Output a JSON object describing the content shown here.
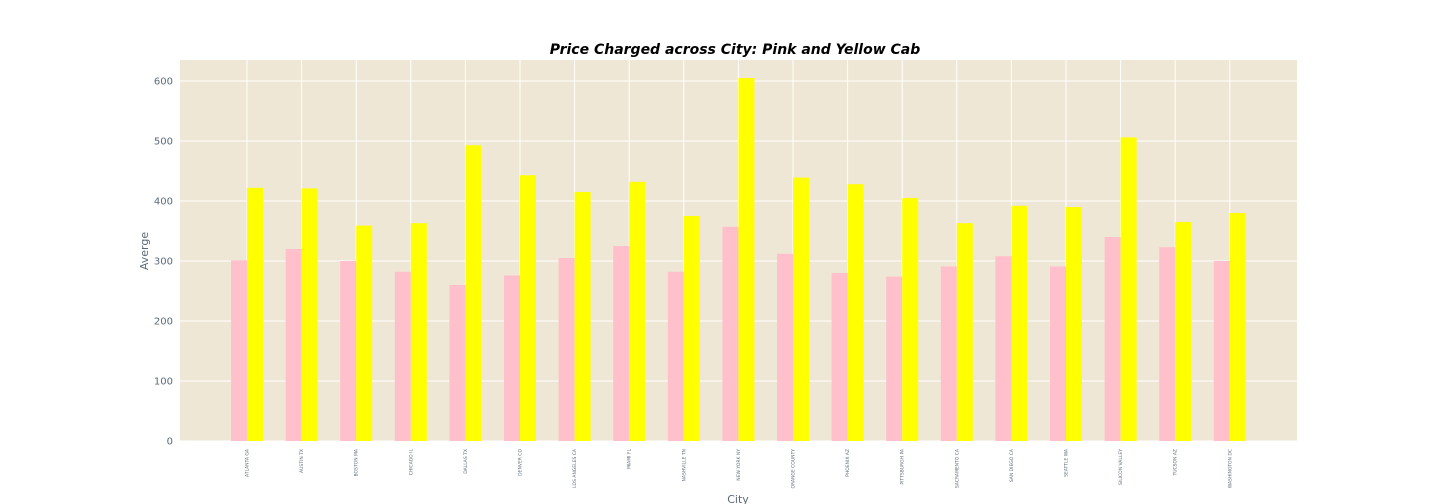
{
  "chart_data": {
    "type": "bar",
    "title": "Price Charged across City: Pink and Yellow Cab",
    "xlabel": "City",
    "ylabel": "Averge",
    "ylim": [
      0,
      635
    ],
    "yticks": [
      0,
      100,
      200,
      300,
      400,
      500,
      600
    ],
    "grid": true,
    "legend": "none",
    "background_color": "#efe7d5",
    "grid_color": "#ffffff",
    "categories": [
      "ATLANTA GA",
      "AUSTIN TX",
      "BOSTON MA",
      "CHICAGO IL",
      "DALLAS TX",
      "DENVER CO",
      "LOS ANGELES CA",
      "MIAMI FL",
      "NASHVILLE TN",
      "NEW YORK NY",
      "ORANGE COUNTY",
      "PHOENIX AZ",
      "PITTSBURGH PA",
      "SACRAMENTO CA",
      "SAN DIEGO CA",
      "SEATTLE WA",
      "SILICON VALLEY",
      "TUCSON AZ",
      "WASHINGTON DC"
    ],
    "series": [
      {
        "color": "#ffc0cb",
        "values": [
          301,
          320,
          300,
          282,
          260,
          276,
          305,
          325,
          282,
          357,
          312,
          280,
          274,
          291,
          308,
          291,
          340,
          323,
          300
        ]
      },
      {
        "color": "#ffff00",
        "values": [
          422,
          421,
          359,
          363,
          493,
          443,
          415,
          432,
          375,
          605,
          439,
          428,
          405,
          363,
          392,
          390,
          506,
          365,
          380
        ]
      }
    ]
  }
}
